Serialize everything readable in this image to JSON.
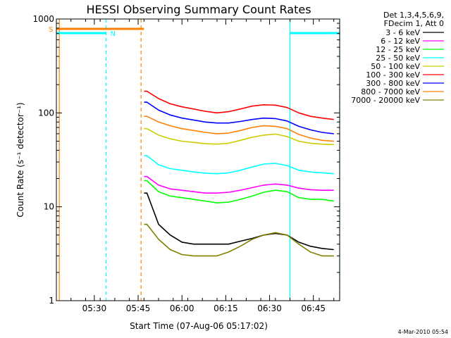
{
  "chart_data": {
    "type": "line",
    "title": "HESSI Observing Summary Count Rates",
    "xlabel": "Start Time (07-Aug-06 05:17:02)",
    "ylabel": "Count Rate (s⁻¹ detector⁻¹)",
    "xlim": [
      "05:17",
      "06:54"
    ],
    "ylim": [
      1,
      1000
    ],
    "yscale": "log",
    "x_ticks": [
      "05:30",
      "05:45",
      "06:00",
      "06:15",
      "06:30",
      "06:45"
    ],
    "y_ticks": [
      "1",
      "10",
      "100",
      "1000"
    ],
    "legend_header": [
      "Det 1,3,4,5,6,9,",
      "FDecim 1, Att 0"
    ],
    "legend_position": "outside-right",
    "timestamp": "4-Mar-2010 05:54",
    "flags": [
      {
        "label": "S",
        "color": "#ff8000",
        "from": "05:17",
        "to": "05:47"
      },
      {
        "label": "N",
        "color": "#00ffff",
        "from": "05:17",
        "to": "05:34"
      },
      {
        "label": "",
        "color": "#00ffff",
        "from": "06:37",
        "to": "06:54"
      }
    ],
    "vlines": [
      {
        "t": "05:18",
        "color": "#ff8000",
        "style": "solid"
      },
      {
        "t": "05:34",
        "color": "#00ffff",
        "style": "dashed"
      },
      {
        "t": "05:46",
        "color": "#ff8000",
        "style": "dashed"
      },
      {
        "t": "06:37",
        "color": "#00ffff",
        "style": "solid"
      },
      {
        "t": "06:54",
        "color": "#00ffff",
        "style": "dashed"
      }
    ],
    "x": [
      "05:48",
      "05:52",
      "05:56",
      "06:00",
      "06:04",
      "06:08",
      "06:12",
      "06:16",
      "06:20",
      "06:24",
      "06:28",
      "06:32",
      "06:36",
      "06:40",
      "06:44",
      "06:48",
      "06:52"
    ],
    "series": [
      {
        "name": "3 - 6 keV",
        "color": "#000000",
        "values": [
          14,
          6.5,
          5,
          4.2,
          4,
          4,
          4,
          4,
          4.3,
          4.6,
          5,
          5.2,
          5,
          4.2,
          3.8,
          3.6,
          3.5
        ]
      },
      {
        "name": "6 - 12 keV",
        "color": "#ff00ff",
        "values": [
          21,
          17,
          15.5,
          15,
          14.5,
          14,
          14,
          14.3,
          15,
          16,
          17,
          17.5,
          17,
          15.8,
          15.2,
          15,
          15
        ]
      },
      {
        "name": "12 - 25 keV",
        "color": "#00ff00",
        "values": [
          19,
          14.5,
          13,
          12.5,
          12,
          11.5,
          11,
          11.2,
          12,
          13,
          14.3,
          15,
          14.5,
          12.5,
          12,
          12,
          11.5
        ]
      },
      {
        "name": "25 - 50 keV",
        "color": "#00ffff",
        "values": [
          35,
          28,
          25.5,
          24.5,
          23.5,
          22.8,
          22.5,
          23,
          24.5,
          26.5,
          28.5,
          29,
          27.5,
          24.5,
          23.5,
          23,
          22.5
        ]
      },
      {
        "name": "50 - 100 keV",
        "color": "#cccc00",
        "values": [
          68,
          58,
          53,
          50,
          48.5,
          47,
          46.5,
          47.5,
          51,
          55,
          58,
          59.5,
          56,
          50,
          47.5,
          46.5,
          46
        ]
      },
      {
        "name": "100 - 300 keV",
        "color": "#ff0000",
        "values": [
          170,
          142,
          125,
          116,
          110,
          104,
          100,
          103,
          110,
          118,
          122,
          121,
          114,
          100,
          92,
          88,
          85
        ]
      },
      {
        "name": "300 - 800 keV",
        "color": "#0000ff",
        "values": [
          130,
          107,
          95,
          88,
          84,
          80,
          78,
          78,
          81,
          85,
          88,
          87,
          82,
          72,
          66,
          62,
          60
        ]
      },
      {
        "name": "800 - 7000 keV",
        "color": "#ff8000",
        "values": [
          92,
          80,
          73,
          68,
          65,
          62,
          60,
          61,
          65,
          70,
          73,
          72,
          68,
          59,
          54,
          51,
          50
        ]
      },
      {
        "name": "7000 - 20000 keV",
        "color": "#808000",
        "values": [
          6.5,
          4.5,
          3.5,
          3.1,
          3,
          3,
          3,
          3.3,
          3.8,
          4.5,
          5,
          5.3,
          5,
          4,
          3.3,
          3,
          3
        ]
      }
    ]
  }
}
